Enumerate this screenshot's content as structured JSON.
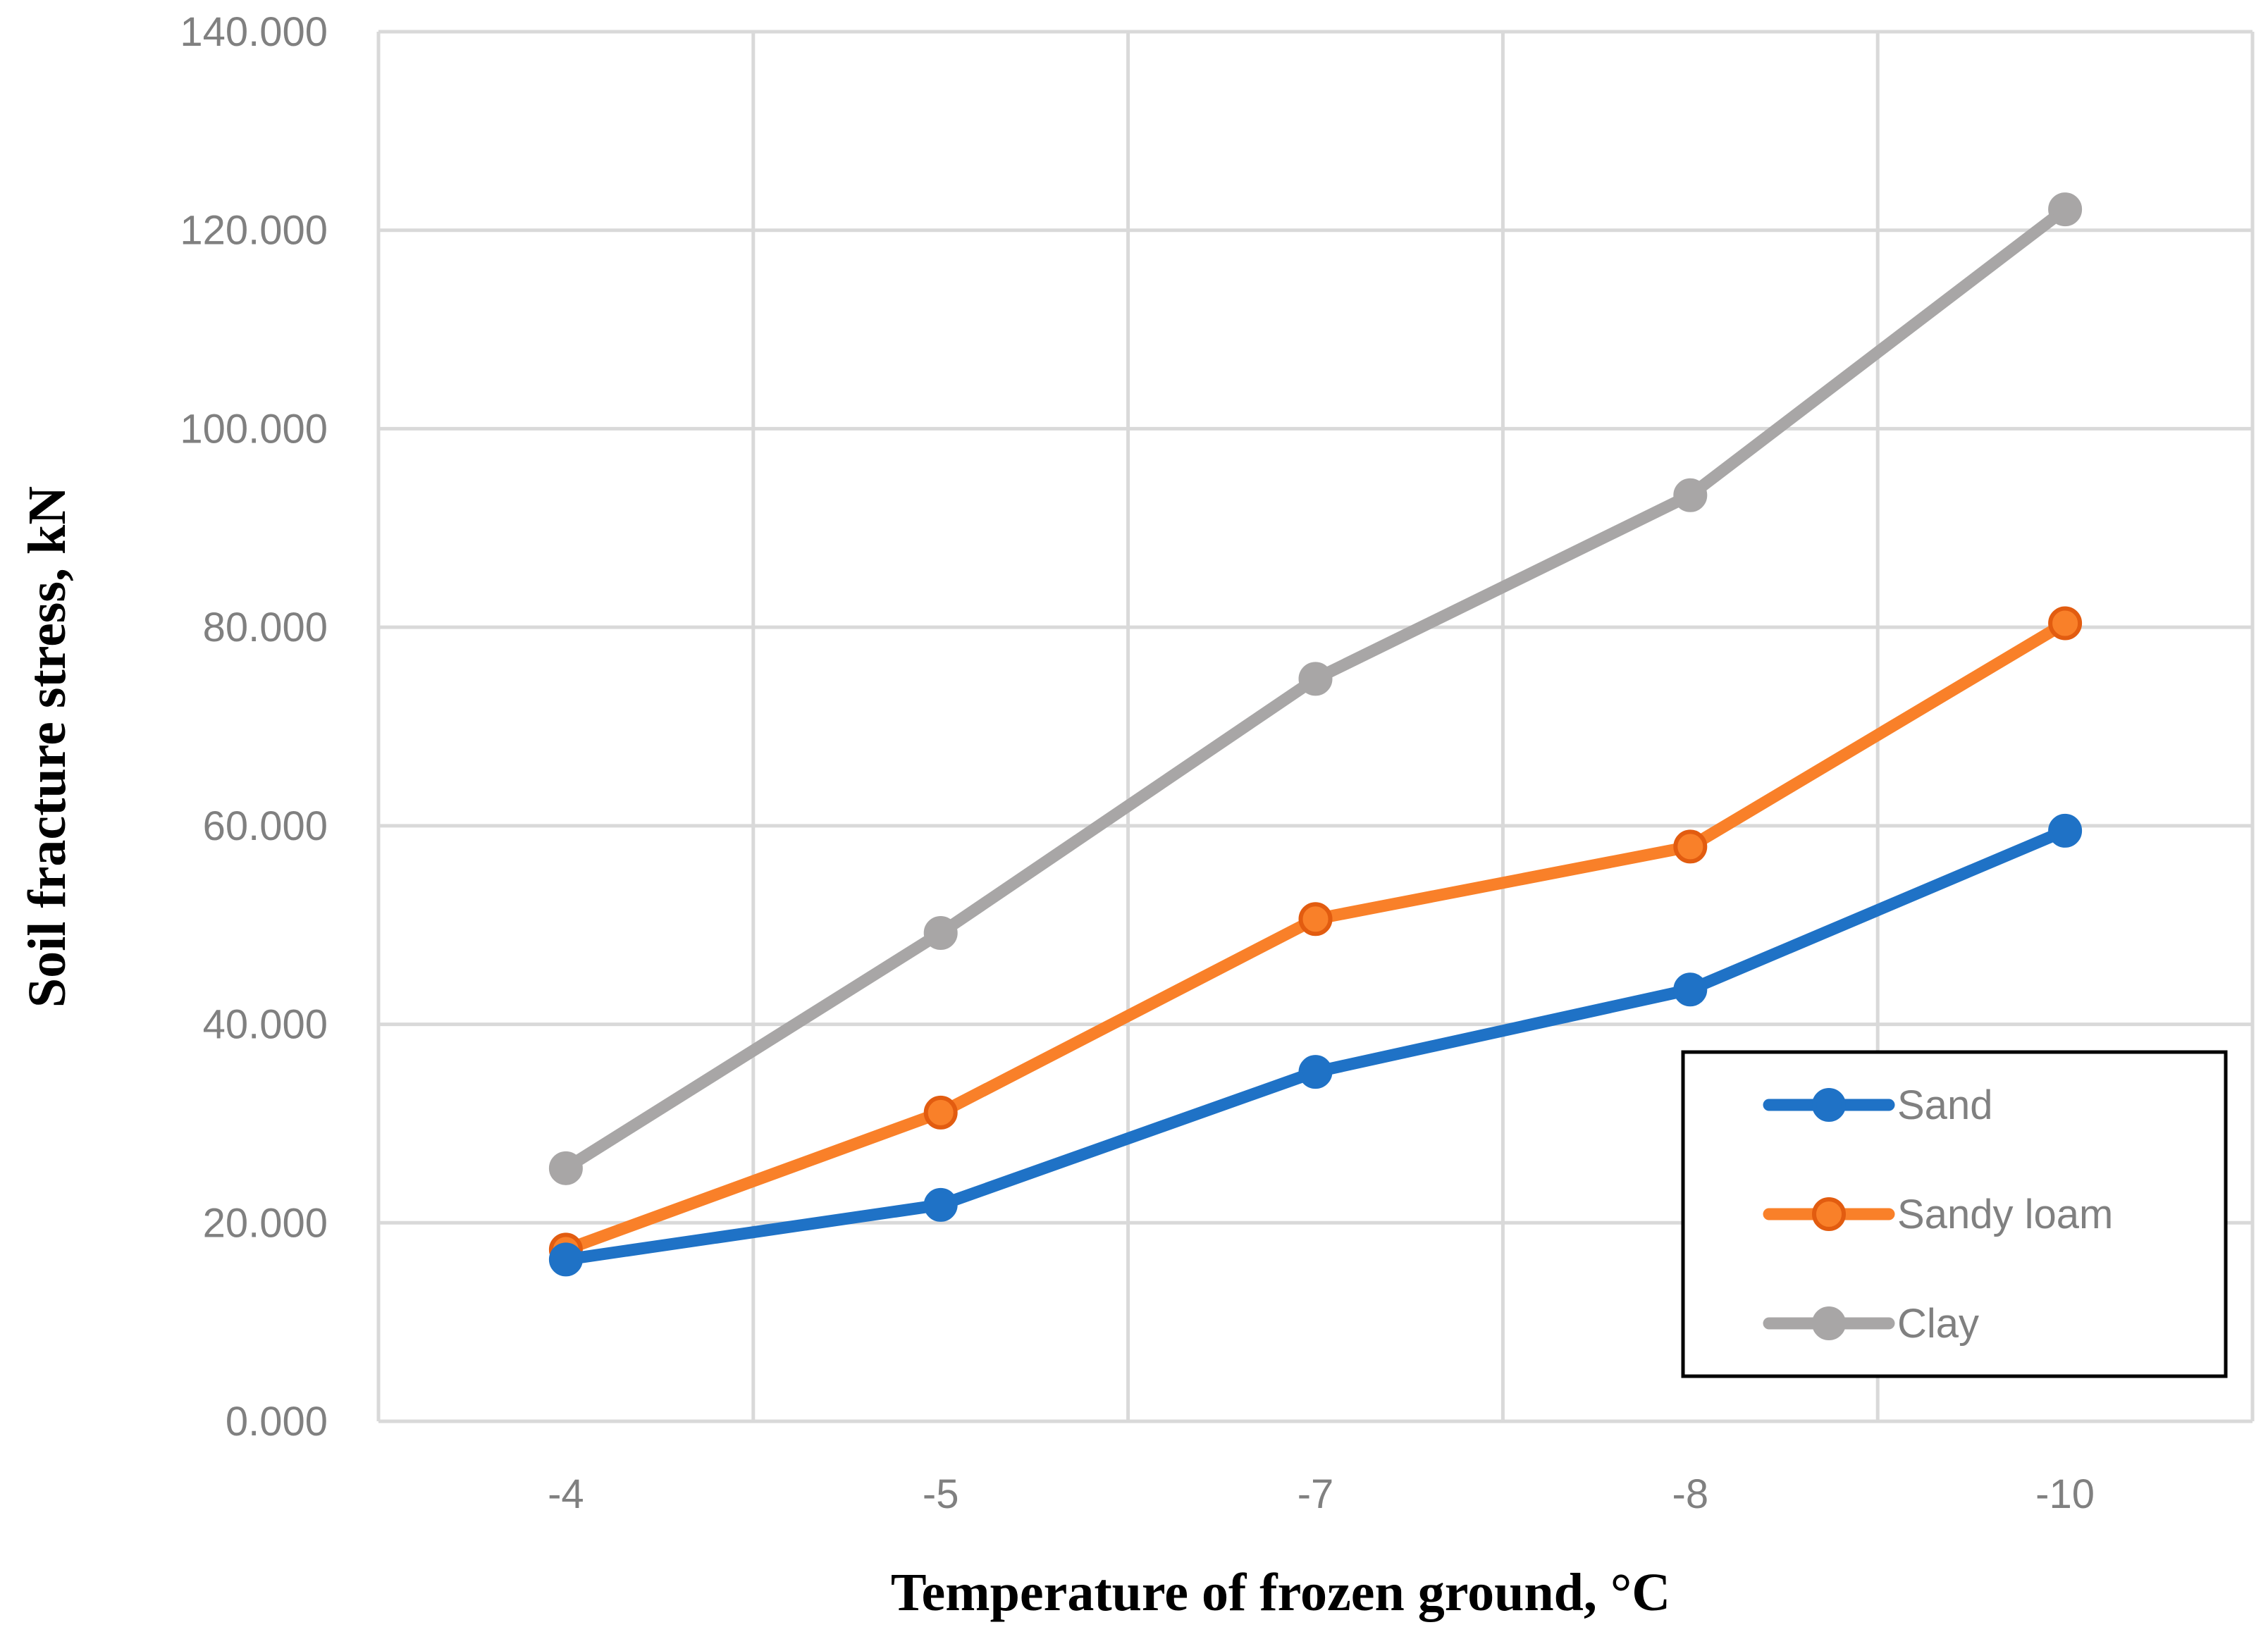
{
  "chart_data": {
    "type": "line",
    "title": "",
    "xlabel": "Temperature of frozen ground, °C",
    "ylabel": "Soil fracture stress, kN",
    "categories": [
      "-4",
      "-5",
      "-7",
      "-8",
      "-10"
    ],
    "ylim": [
      0,
      140
    ],
    "yticks": [
      0,
      20,
      40,
      60,
      80,
      100,
      120,
      140
    ],
    "ytick_labels": [
      "0.000",
      "20.000",
      "40.000",
      "60.000",
      "80.000",
      "100.000",
      "120.000",
      "140.000"
    ],
    "grid": true,
    "legend_position": "bottom-right",
    "series": [
      {
        "name": "Sand",
        "color": "#1F72C6",
        "values": [
          16.3,
          21.8,
          35.2,
          43.5,
          59.5
        ]
      },
      {
        "name": "Sandy loam",
        "color": "#F98029",
        "values": [
          17.3,
          31.1,
          50.6,
          57.9,
          80.4
        ]
      },
      {
        "name": "Clay",
        "color": "#A8A6A6",
        "values": [
          25.5,
          49.2,
          74.8,
          93.3,
          122.1
        ]
      }
    ]
  }
}
